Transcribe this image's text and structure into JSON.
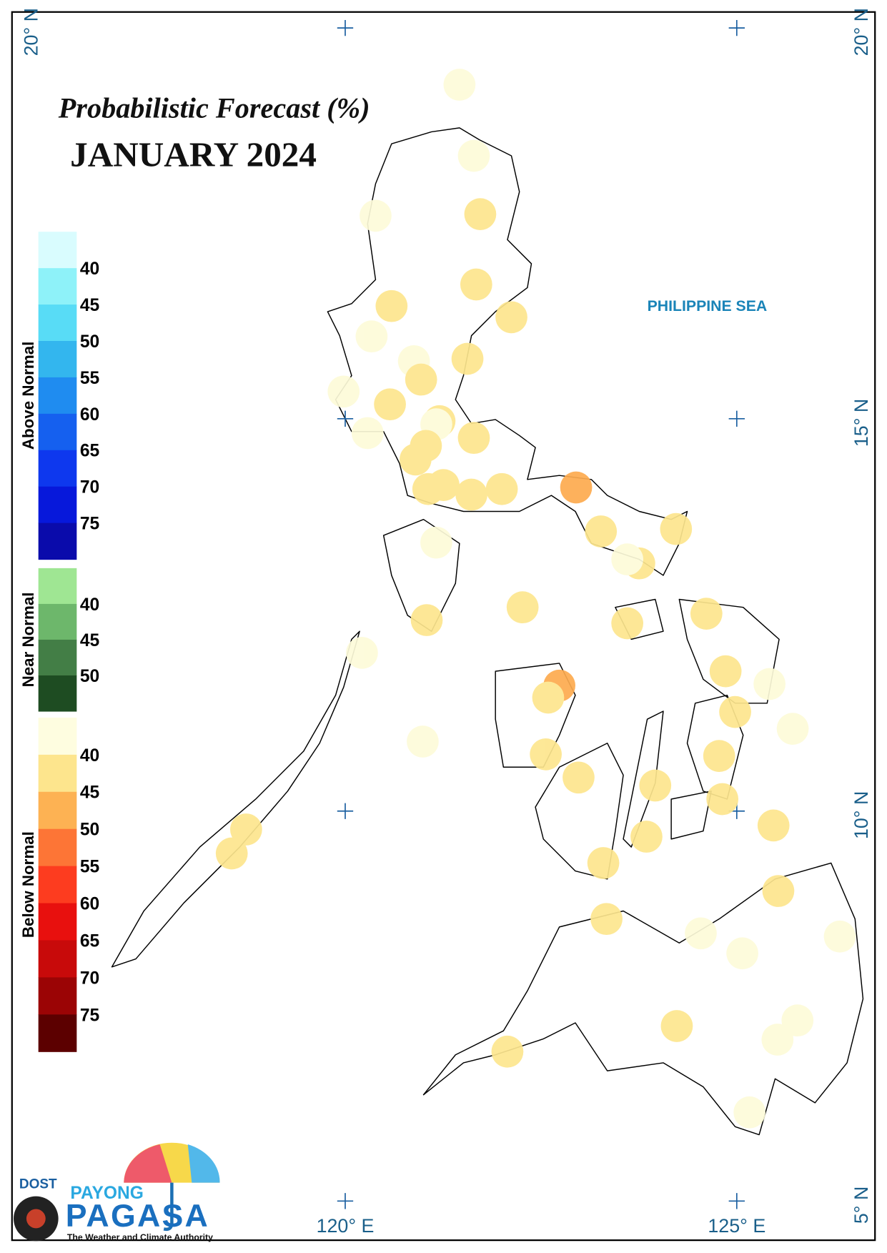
{
  "title": "Probabilistic Forecast (%)",
  "subtitle": "JANUARY 2024",
  "sea_label": "PHILIPPINE SEA",
  "axes": {
    "left": [
      "20° N"
    ],
    "right": [
      "20° N",
      "15° N",
      "10° N",
      "5° N"
    ],
    "bottom": [
      "120° E",
      "125° E"
    ]
  },
  "legend": [
    {
      "name": "Above Normal",
      "colors": [
        "#d9fcfe",
        "#8ef2f9",
        "#58dcf6",
        "#33b6ee",
        "#1f8cf0",
        "#1560ef",
        "#0e38ee",
        "#0718db",
        "#0a0bab"
      ],
      "labels": [
        40,
        45,
        50,
        55,
        60,
        65,
        70,
        75
      ]
    },
    {
      "name": "Near Normal",
      "colors": [
        "#9fe693",
        "#6db76b",
        "#437e46",
        "#1e4c22"
      ],
      "labels": [
        40,
        45,
        50
      ]
    },
    {
      "name": "Below Normal",
      "colors": [
        "#fefde0",
        "#fde58d",
        "#fdb253",
        "#fd7536",
        "#fd3c1f",
        "#e8100e",
        "#c80a0a",
        "#9b0405",
        "#5c0000"
      ],
      "labels": [
        40,
        45,
        50,
        55,
        60,
        65,
        70,
        75
      ]
    }
  ],
  "logo": {
    "agency": "DOST",
    "brand_top": "PAYONG",
    "brand": "PAGASA",
    "tagline": "The Weather and Climate Authority"
  }
}
